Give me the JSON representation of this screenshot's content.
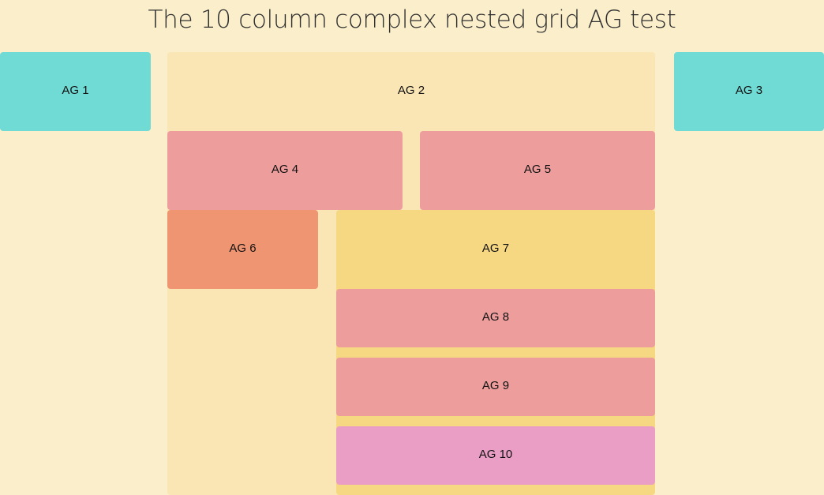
{
  "page": {
    "title": "The 10 column complex nested grid AG test"
  },
  "cells": {
    "ag1": "AG 1",
    "ag2": "AG 2",
    "ag3": "AG 3",
    "ag4": "AG 4",
    "ag5": "AG 5",
    "ag6": "AG 6",
    "ag7": "AG 7",
    "ag8": "AG 8",
    "ag9": "AG 9",
    "ag10": "AG 10"
  },
  "colors": {
    "background": "#fbeecb",
    "teal": "#70dad5",
    "pale": "#fae6b4",
    "salmon": "#ed9d9c",
    "orange": "#f09572",
    "yellow": "#f6d782",
    "pink": "#eb9ec5"
  }
}
